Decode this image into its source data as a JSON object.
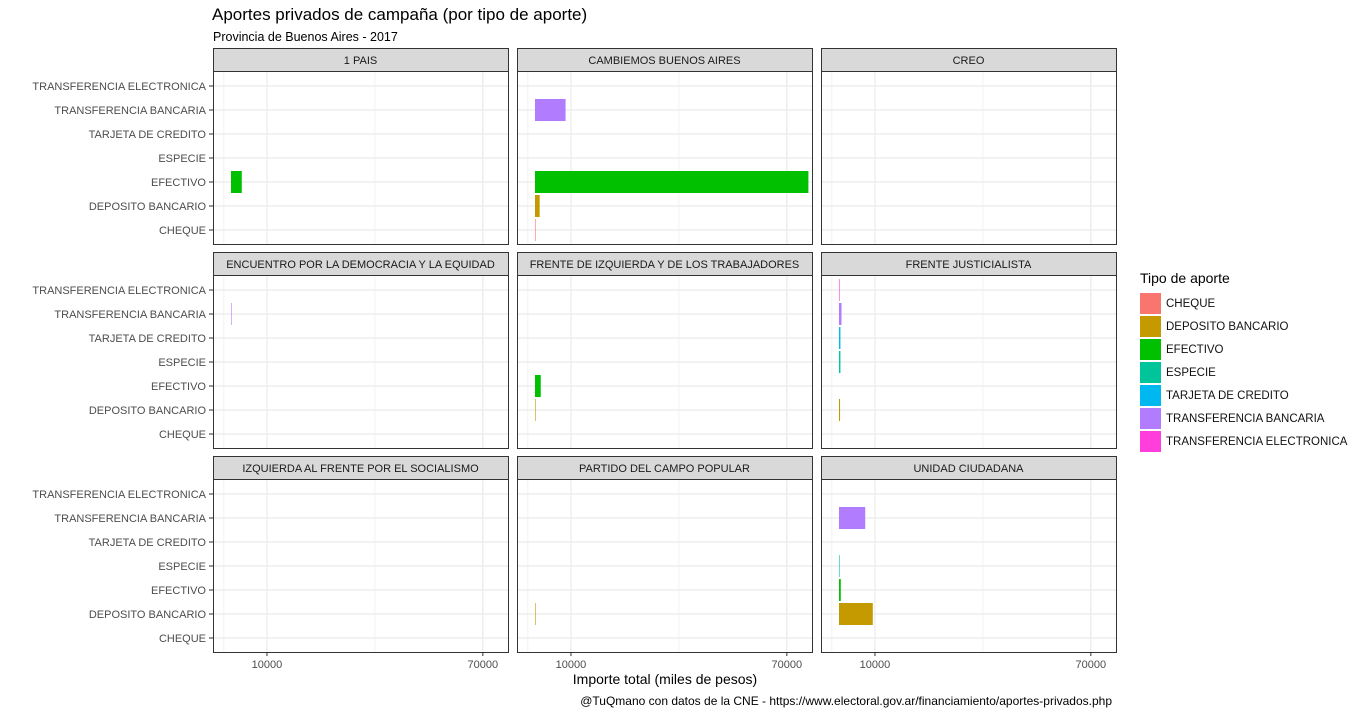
{
  "title": "Aportes privados de campaña (por tipo de aporte)",
  "subtitle": "Provincia de Buenos Aires - 2017",
  "caption": "@TuQmano con datos de la CNE - https://www.electoral.gov.ar/financiamiento/aportes-privados.php",
  "legend": {
    "title": "Tipo de aporte",
    "items": [
      {
        "label": "CHEQUE",
        "color": "#F8766D"
      },
      {
        "label": "DEPOSITO BANCARIO",
        "color": "#C49A00"
      },
      {
        "label": "EFECTIVO",
        "color": "#00C000"
      },
      {
        "label": "ESPECIE",
        "color": "#00C49A"
      },
      {
        "label": "TARJETA DE CREDITO",
        "color": "#00B8F0"
      },
      {
        "label": "TRANSFERENCIA BANCARIA",
        "color": "#B27CFF"
      },
      {
        "label": "TRANSFERENCIA ELECTRONICA",
        "color": "#FF3EDC"
      }
    ]
  },
  "chart_data": {
    "type": "bar",
    "orientation": "horizontal",
    "facet_layout": "3x3",
    "xlabel": "Importe total (miles de pesos)",
    "ylabel": "",
    "xlim": [
      -5000,
      77000
    ],
    "xticks": [
      10000,
      70000
    ],
    "xtick_labels": [
      "10000",
      "70000"
    ],
    "grid": true,
    "legend_position": "right",
    "categories": [
      "CHEQUE",
      "DEPOSITO BANCARIO",
      "EFECTIVO",
      "ESPECIE",
      "TARJETA DE CREDITO",
      "TRANSFERENCIA BANCARIA",
      "TRANSFERENCIA ELECTRONICA"
    ],
    "facets": [
      {
        "name": "1 PAIS",
        "values": [
          0,
          0,
          3000,
          0,
          0,
          0,
          0
        ]
      },
      {
        "name": "CAMBIEMOS BUENOS AIRES",
        "values": [
          150,
          1300,
          76000,
          0,
          0,
          8500,
          0
        ]
      },
      {
        "name": "CREO",
        "values": [
          0,
          0,
          0,
          0,
          0,
          0,
          0
        ]
      },
      {
        "name": "ENCUENTRO POR LA DEMOCRACIA Y LA EQUIDAD",
        "values": [
          0,
          0,
          0,
          0,
          0,
          50,
          0
        ]
      },
      {
        "name": "FRENTE DE IZQUIERDA Y DE LOS TRABAJADORES",
        "values": [
          0,
          50,
          1600,
          0,
          0,
          0,
          0
        ]
      },
      {
        "name": "FRENTE JUSTICIALISTA",
        "values": [
          0,
          300,
          0,
          400,
          400,
          700,
          100
        ]
      },
      {
        "name": "IZQUIERDA AL FRENTE POR EL SOCIALISMO",
        "values": [
          0,
          0,
          0,
          0,
          0,
          0,
          0
        ]
      },
      {
        "name": "PARTIDO DEL CAMPO POPULAR",
        "values": [
          0,
          150,
          0,
          0,
          0,
          0,
          0
        ]
      },
      {
        "name": "UNIDAD CIUDADANA",
        "values": [
          0,
          9400,
          500,
          100,
          0,
          7300,
          0
        ]
      }
    ]
  }
}
